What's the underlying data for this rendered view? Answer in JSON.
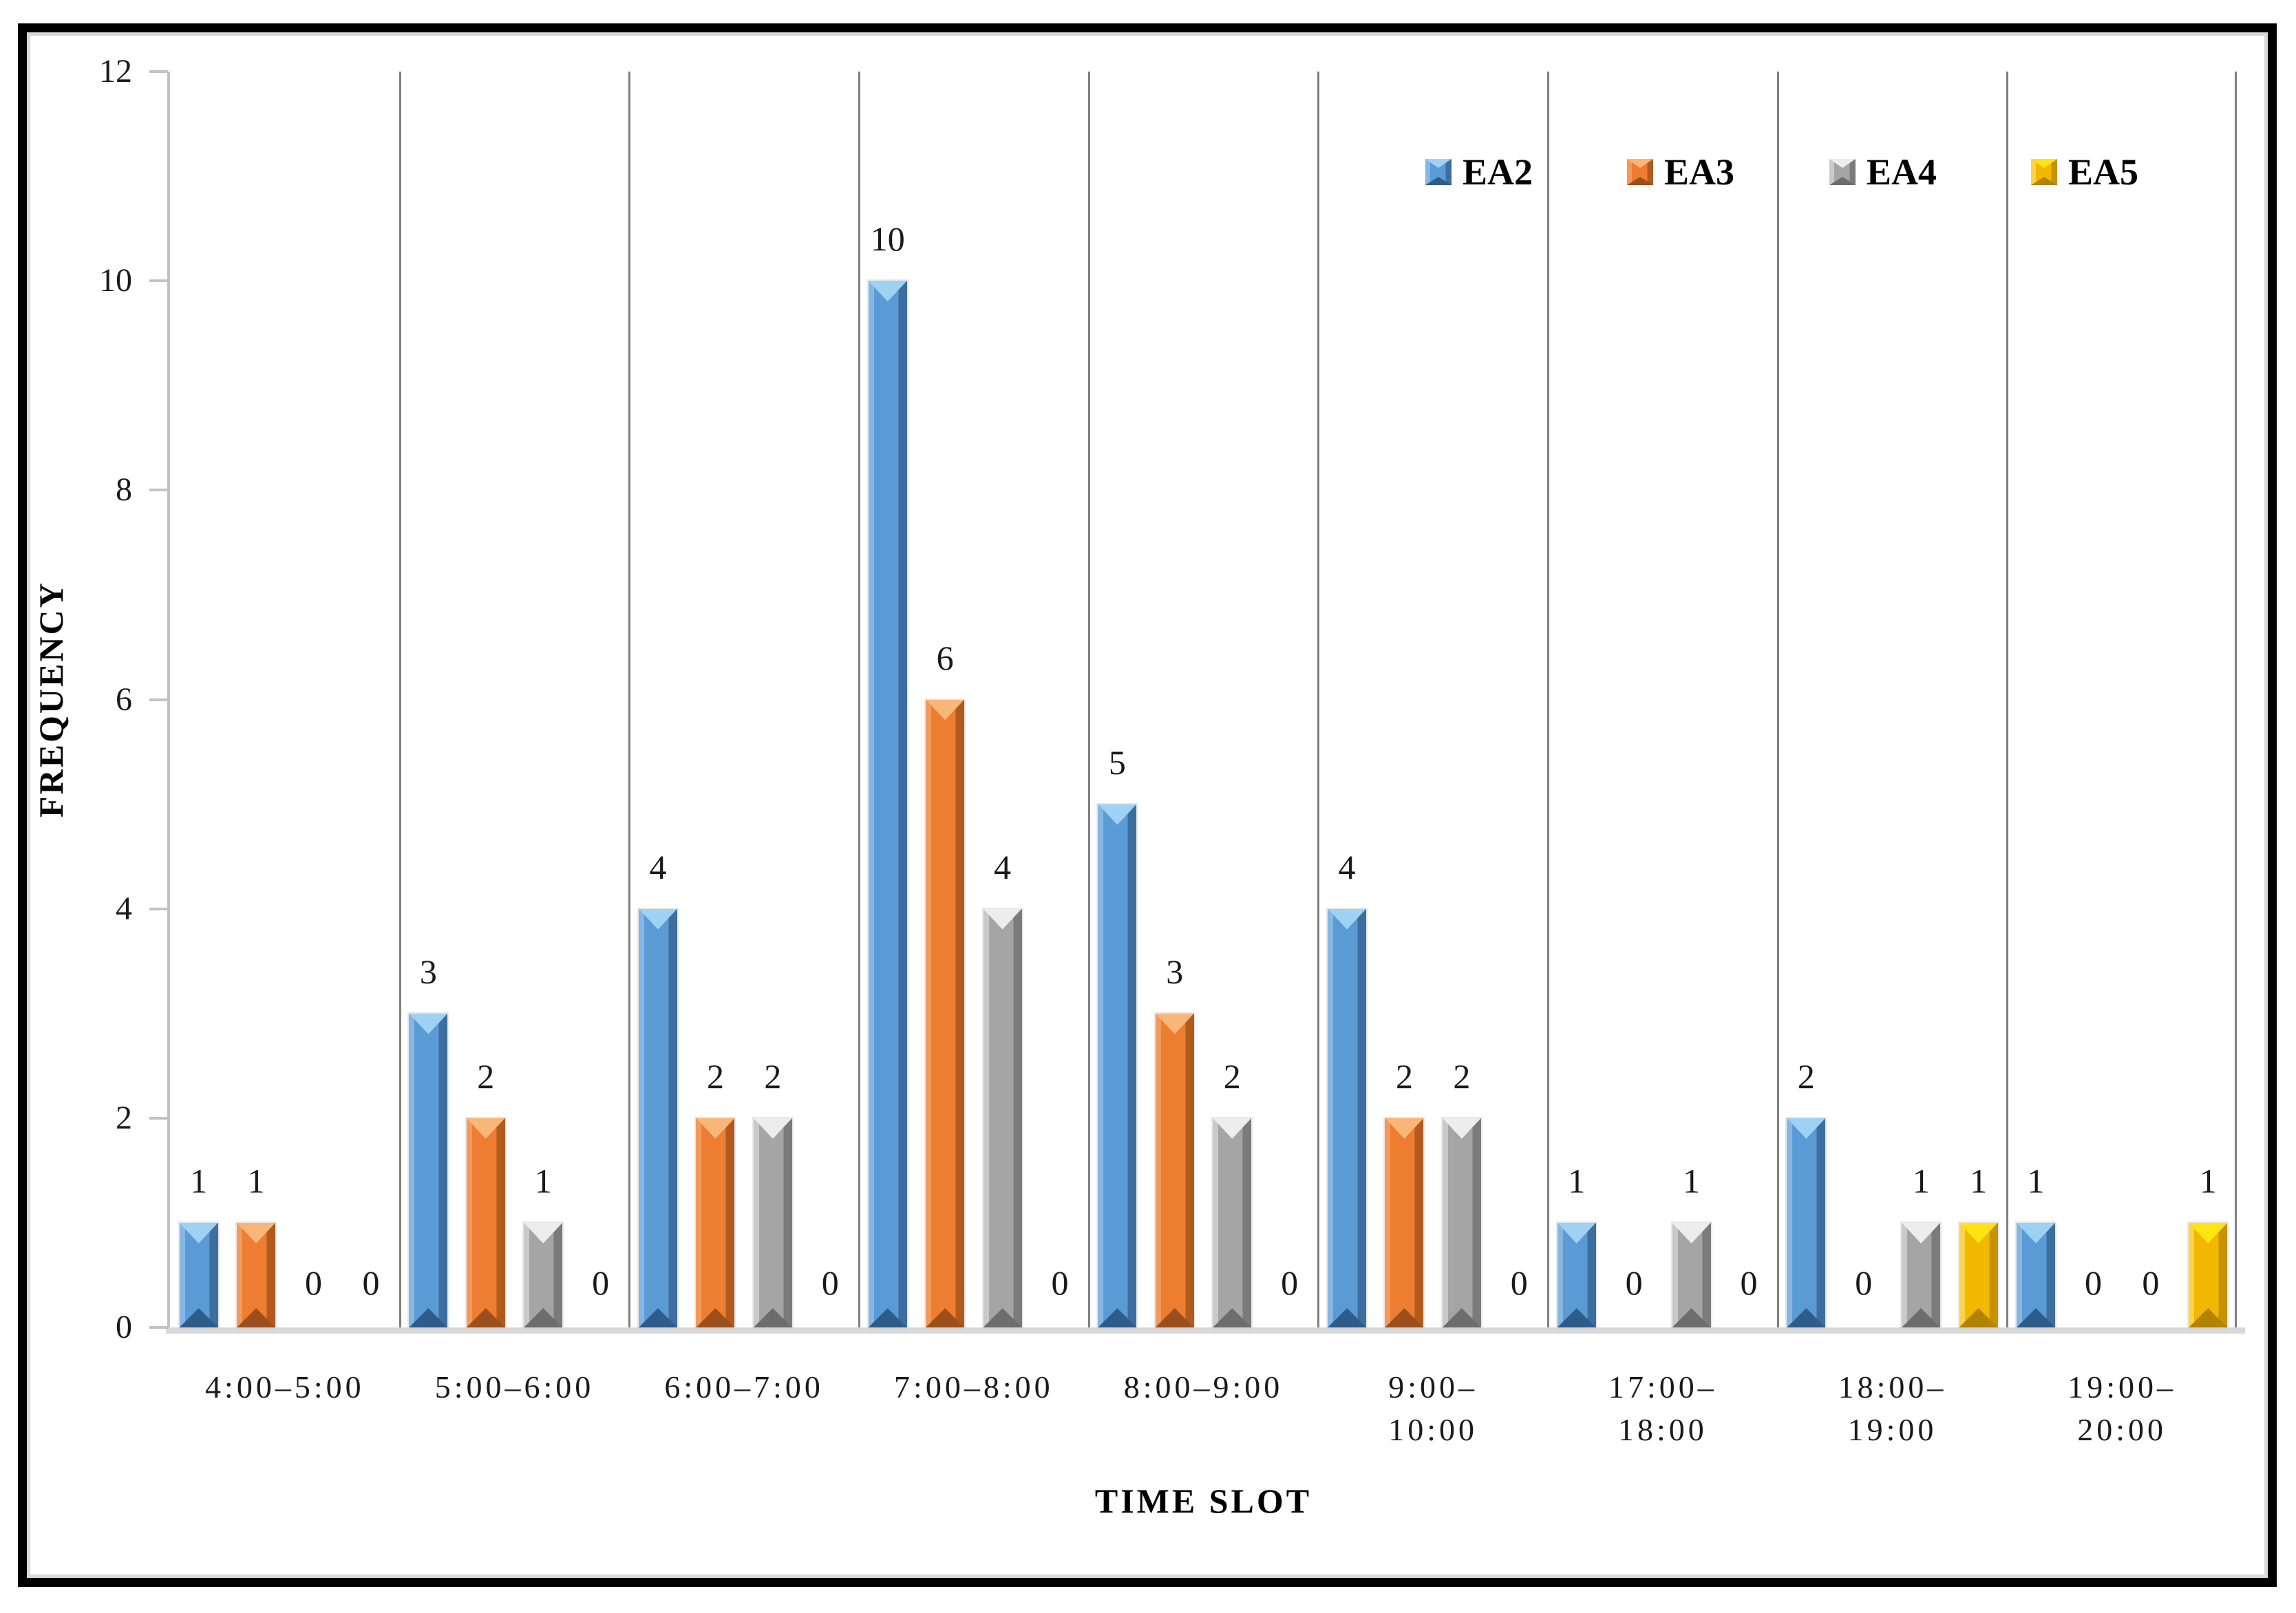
{
  "figure": {
    "background": "#ffffff",
    "border_color": "#000000"
  },
  "style": {
    "axis_line_color": "#C2C2C2",
    "separator_color": "#7F7F7F",
    "baseline_color": "#D9D9D9",
    "label_color": "#1A1A1A"
  },
  "chart_data": {
    "type": "bar",
    "title": "",
    "xlabel": "TIME SLOT",
    "ylabel": "FREQUENCY",
    "ylim": [
      0,
      12
    ],
    "yticks": [
      0,
      2,
      4,
      6,
      8,
      10,
      12
    ],
    "grid": "vertical category separator lines only",
    "legend_position": "top-right inside plot",
    "data_labels": true,
    "categories": [
      "4:00–5:00",
      "5:00–6:00",
      "6:00–7:00",
      "7:00–8:00",
      "8:00–9:00",
      "9:00–10:00",
      "17:00–18:00",
      "18:00–19:00",
      "19:00–20:00"
    ],
    "category_label_lines": [
      [
        "4:00–5:00"
      ],
      [
        "5:00–6:00"
      ],
      [
        "6:00–7:00"
      ],
      [
        "7:00–8:00"
      ],
      [
        "8:00–9:00"
      ],
      [
        "9:00–",
        "10:00"
      ],
      [
        "17:00–",
        "18:00"
      ],
      [
        "18:00–",
        "19:00"
      ],
      [
        "19:00–",
        "20:00"
      ]
    ],
    "series": [
      {
        "name": "EA2",
        "values": [
          1,
          3,
          4,
          10,
          5,
          4,
          1,
          2,
          1
        ],
        "color": "#5B9BD5",
        "bevel": {
          "light": "#85B7E2",
          "dark": "#3C6E9F",
          "top": "#9FD1F2",
          "bottom": "#2E5C8A"
        }
      },
      {
        "name": "EA3",
        "values": [
          1,
          2,
          2,
          6,
          3,
          2,
          0,
          0,
          0
        ],
        "color": "#ED7D31",
        "bevel": {
          "light": "#F29A5E",
          "dark": "#B05A1E",
          "top": "#F8B679",
          "bottom": "#9C4F1B"
        }
      },
      {
        "name": "EA4",
        "values": [
          0,
          1,
          2,
          4,
          2,
          2,
          1,
          1,
          0
        ],
        "color": "#A5A5A5",
        "bevel": {
          "light": "#C9C9C9",
          "dark": "#7B7B7B",
          "top": "#EDEDED",
          "bottom": "#6D6D6D"
        }
      },
      {
        "name": "EA5",
        "values": [
          0,
          0,
          0,
          0,
          0,
          0,
          0,
          1,
          1
        ],
        "color": "#F2B800",
        "bevel": {
          "light": "#FFD24D",
          "dark": "#C79200",
          "top": "#FFE312",
          "bottom": "#B28300"
        }
      }
    ]
  }
}
